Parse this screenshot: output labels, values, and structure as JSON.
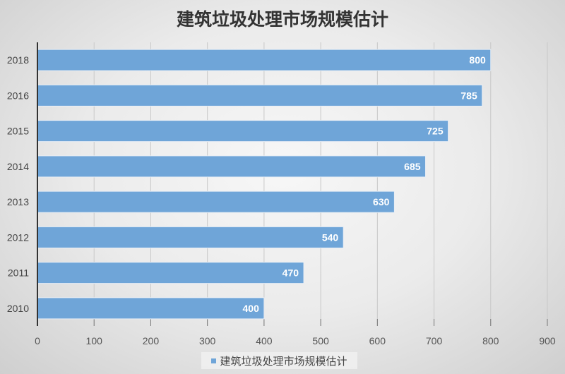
{
  "chart_data": {
    "type": "bar",
    "orientation": "horizontal",
    "title": "建筑垃圾处理市场规模估计",
    "categories": [
      "2018",
      "2016",
      "2015",
      "2014",
      "2013",
      "2012",
      "2011",
      "2010"
    ],
    "series": [
      {
        "name": "建筑垃圾处理市场规模估计",
        "values": [
          800,
          785,
          725,
          685,
          630,
          540,
          470,
          400
        ],
        "color": "#6fa5d8"
      }
    ],
    "xlim": [
      0,
      900
    ],
    "xticks": [
      0,
      100,
      200,
      300,
      400,
      500,
      600,
      700,
      800,
      900
    ],
    "xlabel": "",
    "ylabel": "",
    "grid": true,
    "data_labels": true,
    "legend": "bottom"
  }
}
